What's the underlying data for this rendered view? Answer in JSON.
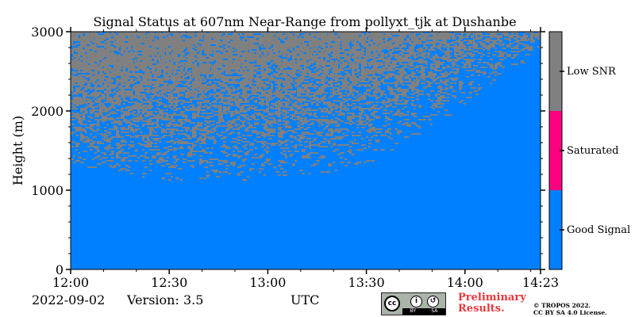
{
  "chart_data": {
    "type": "heatmap",
    "title": "Signal Status at 607nm Near-Range from pollyxt_tjk at Dushanbe",
    "xlabel": "",
    "ylabel": "Height (m)",
    "xlim": [
      "12:00",
      "14:23"
    ],
    "ylim": [
      0,
      3000
    ],
    "x_ticks": [
      "12:00",
      "12:30",
      "13:00",
      "13:30",
      "14:00",
      "14:23"
    ],
    "y_ticks": [
      0,
      1000,
      2000,
      3000
    ],
    "colorbar": [
      {
        "label": "Good Signal",
        "color": "#0080ff"
      },
      {
        "label": "Saturated",
        "color": "#ff0080"
      },
      {
        "label": "Low SNR",
        "color": "#808080"
      }
    ],
    "low_snr_boundary": [
      {
        "time": "12:00",
        "height": 1300
      },
      {
        "time": "12:30",
        "height": 1100
      },
      {
        "time": "13:00",
        "height": 1150
      },
      {
        "time": "13:30",
        "height": 1300
      },
      {
        "time": "14:00",
        "height": 2100
      },
      {
        "time": "14:23",
        "height": 2800
      }
    ],
    "dense_low_snr_boundary": [
      {
        "time": "12:00",
        "height": 2100
      },
      {
        "time": "12:30",
        "height": 2250
      },
      {
        "time": "13:00",
        "height": 2300
      },
      {
        "time": "13:30",
        "height": 2500
      },
      {
        "time": "14:00",
        "height": 2950
      },
      {
        "time": "14:23",
        "height": 3000
      }
    ]
  },
  "footer": {
    "date": "2022-09-02",
    "version": "Version: 3.5",
    "utc": "UTC",
    "cc_labels": [
      "cc",
      "BY",
      "SA"
    ],
    "preliminary": [
      "Preliminary",
      "Results."
    ],
    "copyright": [
      "© TROPOS 2022.",
      "CC BY SA 4.0 License."
    ]
  }
}
